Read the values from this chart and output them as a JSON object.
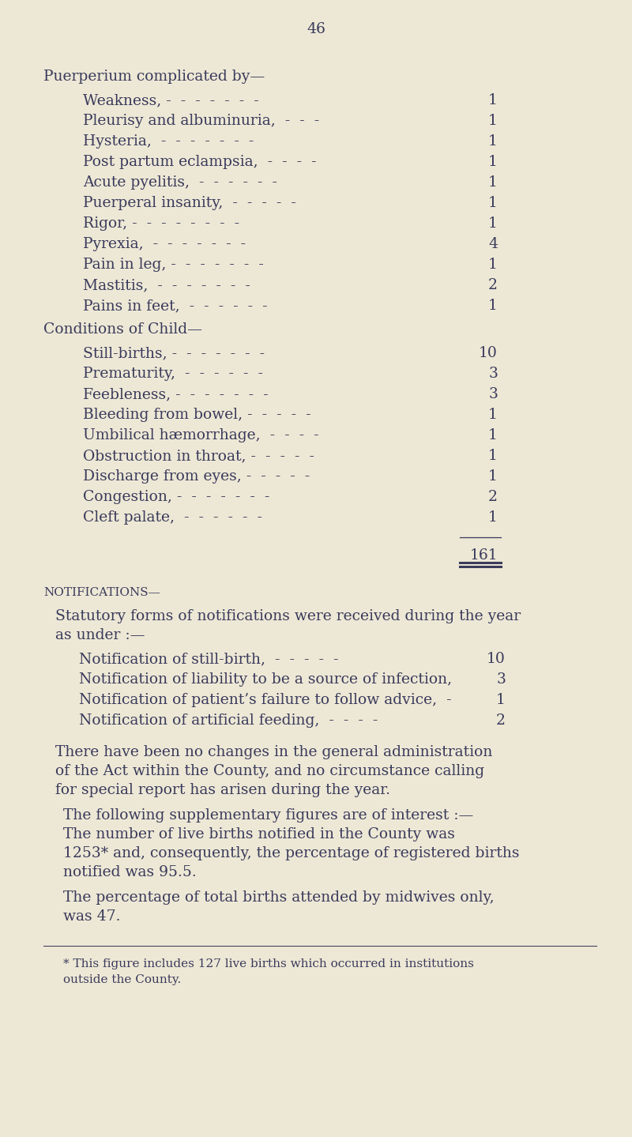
{
  "bg_color": "#ede8d5",
  "text_color": "#3a3a5c",
  "page_number": "46",
  "section1_header": "Puerperium complicated by—",
  "section1_items": [
    [
      "Weakness, -  -  -  -  -  -  -",
      "1"
    ],
    [
      "Pleurisy and albuminuria,  -  -  -",
      "1"
    ],
    [
      "Hysteria,  -  -  -  -  -  -  -",
      "1"
    ],
    [
      "Post partum eclampsia,  -  -  -  -",
      "1"
    ],
    [
      "Acute pyelitis,  -  -  -  -  -  -",
      "1"
    ],
    [
      "Puerperal insanity,  -  -  -  -  -",
      "1"
    ],
    [
      "Rigor, -  -  -  -  -  -  -  -",
      "1"
    ],
    [
      "Pyrexia,  -  -  -  -  -  -  -",
      "4"
    ],
    [
      "Pain in leg, -  -  -  -  -  -  -",
      "1"
    ],
    [
      "Mastitis,  -  -  -  -  -  -  -",
      "2"
    ],
    [
      "Pains in feet,  -  -  -  -  -  -",
      "1"
    ]
  ],
  "section2_header": "Conditions of Child—",
  "section2_items": [
    [
      "Still-births, -  -  -  -  -  -  -",
      "10"
    ],
    [
      "Prematurity,  -  -  -  -  -  -",
      "3"
    ],
    [
      "Feebleness, -  -  -  -  -  -  -",
      "3"
    ],
    [
      "Bleeding from bowel, -  -  -  -  -",
      "1"
    ],
    [
      "Umbilical hæmorrhage,  -  -  -  -",
      "1"
    ],
    [
      "Obstruction in throat, -  -  -  -  -",
      "1"
    ],
    [
      "Discharge from eyes, -  -  -  -  -",
      "1"
    ],
    [
      "Congestion, -  -  -  -  -  -  -",
      "2"
    ],
    [
      "Cleft palate,  -  -  -  -  -  -",
      "1"
    ]
  ],
  "total": "161",
  "notifications_header": "NOTIFICATIONS—",
  "notifications_intro_line1": "Statutory forms of notifications were received during the year",
  "notifications_intro_line2": "as under :—",
  "notifications_items": [
    [
      "Notification of still-birth,  -  -  -  -  -",
      "10"
    ],
    [
      "Notification of liability to be a source of infection,",
      "3"
    ],
    [
      "Notification of patient’s failure to follow advice,  -",
      "1"
    ],
    [
      "Notification of artificial feeding,  -  -  -  -",
      "2"
    ]
  ],
  "para1_lines": [
    "There have been no changes in the general administration",
    "of the Act within the County, and no circumstance calling",
    "for special report has arisen during the year."
  ],
  "para2_lead": "The following supplementary figures are of interest :—",
  "para3_lines": [
    "The number of live births notified in the County was",
    "1253* and, consequently, the percentage of registered births",
    "notified was 95.5."
  ],
  "para4_lines": [
    "The percentage of total births attended by midwives only,",
    "was 47."
  ],
  "footnote_lines": [
    "* This figure includes 127 live births which occurred in institutions",
    "outside the County."
  ]
}
